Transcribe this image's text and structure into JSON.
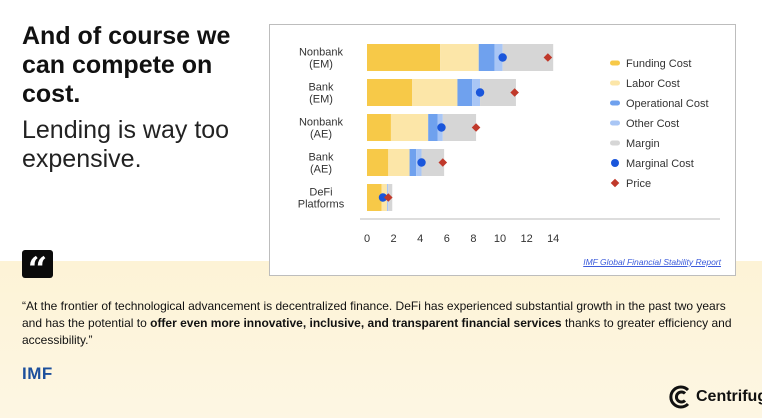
{
  "heading": "And of course we can compete on cost.",
  "subheading": "Lending is way too expensive.",
  "quote": {
    "pre": "“At the frontier of technological advancement is decentralized finance. DeFi has experienced substantial growth in the past two years and has the potential to ",
    "bold": "offer even more innovative, inclusive, and transparent financial services",
    "post": " thanks to greater efficiency and accessibility.”"
  },
  "quote_mark": "“",
  "imf_logo": "IMF",
  "brand": "Centrifuge",
  "source": "IMF Global Financial Stability Report",
  "icons": {
    "quote": "quote-icon",
    "brand": "centrifuge-ring-icon"
  },
  "chart_data": {
    "type": "bar",
    "orientation": "horizontal",
    "stacked": true,
    "categories": [
      "Nonbank\n(EM)",
      "Bank\n(EM)",
      "Nonbank\n(AE)",
      "Bank\n(AE)",
      "DeFi\nPlatforms"
    ],
    "series": [
      {
        "name": "Funding Cost",
        "color": "#f7c948",
        "values": [
          5.5,
          3.4,
          1.8,
          1.6,
          1.1
        ]
      },
      {
        "name": "Labor Cost",
        "color": "#fce6a8",
        "values": [
          2.9,
          3.4,
          2.8,
          1.6,
          0.4
        ]
      },
      {
        "name": "Operational Cost",
        "color": "#6fa1ee",
        "values": [
          1.2,
          1.1,
          0.7,
          0.5,
          0.0
        ]
      },
      {
        "name": "Other Cost",
        "color": "#a9c6f5",
        "values": [
          0.6,
          0.6,
          0.4,
          0.4,
          0.1
        ]
      },
      {
        "name": "Margin",
        "color": "#d6d6d6",
        "values": [
          3.8,
          2.7,
          2.5,
          1.7,
          0.3
        ]
      }
    ],
    "points": [
      {
        "name": "Marginal Cost",
        "color": "#1a56db",
        "shape": "circle",
        "values": [
          10.2,
          8.5,
          5.6,
          4.1,
          1.2
        ]
      },
      {
        "name": "Price",
        "color": "#c0392b",
        "shape": "diamond",
        "values": [
          13.6,
          11.1,
          8.2,
          5.7,
          1.6
        ]
      }
    ],
    "x_ticks": [
      0,
      2,
      4,
      6,
      8,
      10,
      12,
      14
    ],
    "xlim": [
      0,
      14
    ],
    "grid": false,
    "legend_position": "right",
    "title": "",
    "xlabel": "",
    "ylabel": ""
  }
}
